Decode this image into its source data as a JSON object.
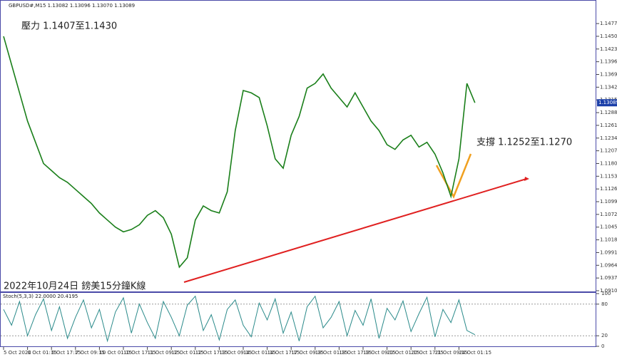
{
  "chart_data": {
    "type": "line",
    "title": "GBPUSD#,M15 1.13082 1.13096 1.13070 1.13089",
    "annotations": [
      "壓力 1.1407至1.1430",
      "支撐 1.1252至1.1270",
      "2022年10月24日 鎊美15分鐘K線"
    ],
    "current_price": 1.13089,
    "categories": [
      "5 Oct 2022",
      null,
      null,
      "6 Oct 01:15",
      null,
      null,
      "6 Oct 17:15",
      null,
      null,
      "7 Oct 09:15",
      null,
      null,
      "10 Oct 01:15",
      null,
      null,
      "10 Oct 17:15",
      null,
      null,
      "11 Oct 09:15",
      null,
      null,
      "12 Oct 01:15",
      null,
      null,
      "12 Oct 17:15",
      null,
      null,
      "13 Oct 09:15",
      null,
      null,
      "14 Oct 01:15",
      null,
      null,
      "14 Oct 17:15",
      null,
      null,
      "17 Oct 09:15",
      null,
      null,
      "18 Oct 01:15",
      null,
      null,
      "18 Oct 17:15",
      null,
      null,
      "19 Oct 09:15",
      null,
      null,
      "20 Oct 01:15",
      null,
      null,
      "20 Oct 17:15",
      null,
      null,
      "21 Oct 09:15",
      null,
      null,
      "24 Oct 01:15",
      null,
      null
    ],
    "series": [
      {
        "name": "GBPUSD#",
        "color": "#1a7f1a",
        "values": [
          1.145,
          1.139,
          1.133,
          1.127,
          1.1225,
          1.118,
          1.1165,
          1.115,
          1.114,
          1.1125,
          1.111,
          1.1095,
          1.1075,
          1.106,
          1.1045,
          1.1035,
          1.104,
          1.105,
          1.107,
          1.108,
          1.1065,
          1.103,
          1.096,
          1.098,
          1.106,
          1.109,
          1.108,
          1.1075,
          1.112,
          1.125,
          1.1335,
          1.133,
          1.132,
          1.126,
          1.119,
          1.117,
          1.124,
          1.128,
          1.134,
          1.135,
          1.137,
          1.134,
          1.132,
          1.13,
          1.133,
          1.13,
          1.127,
          1.125,
          1.122,
          1.121,
          1.123,
          1.124,
          1.1215,
          1.1225,
          1.12,
          1.116,
          1.111,
          1.119,
          1.135,
          1.1309
        ]
      }
    ],
    "ylim": [
      1.091,
      1.1524
    ],
    "yticks": [
      {
        "value": 1.1477,
        "label": "1.14770"
      },
      {
        "value": 1.145,
        "label": "1.14500"
      },
      {
        "value": 1.1423,
        "label": "1.14230"
      },
      {
        "value": 1.1396,
        "label": "1.13960"
      },
      {
        "value": 1.1369,
        "label": "1.13690"
      },
      {
        "value": 1.1342,
        "label": "1.13420"
      },
      {
        "value": 1.1315,
        "label": "1.13150"
      },
      {
        "value": 1.1288,
        "label": "1.12880"
      },
      {
        "value": 1.1261,
        "label": "1.12610"
      },
      {
        "value": 1.1234,
        "label": "1.12340"
      },
      {
        "value": 1.1207,
        "label": "1.12070"
      },
      {
        "value": 1.118,
        "label": "1.11800"
      },
      {
        "value": 1.1153,
        "label": "1.11530"
      },
      {
        "value": 1.1126,
        "label": "1.11260"
      },
      {
        "value": 1.1099,
        "label": "1.10990"
      },
      {
        "value": 1.1072,
        "label": "1.10720"
      },
      {
        "value": 1.1045,
        "label": "1.10450"
      },
      {
        "value": 1.1018,
        "label": "1.10180"
      },
      {
        "value": 1.0991,
        "label": "1.09910"
      },
      {
        "value": 1.0964,
        "label": "1.09640"
      },
      {
        "value": 1.0937,
        "label": "1.09370"
      },
      {
        "value": 1.091,
        "label": "1.09100"
      }
    ],
    "stoch": {
      "label": "Stoch(5,3,3) 22.0000 20.4195",
      "color": "#2a8a8a",
      "values": [
        70,
        40,
        85,
        20,
        60,
        90,
        30,
        75,
        15,
        55,
        88,
        35,
        70,
        10,
        65,
        92,
        25,
        80,
        45,
        15,
        85,
        55,
        20,
        78,
        95,
        30,
        60,
        12,
        70,
        88,
        40,
        18,
        82,
        50,
        90,
        25,
        65,
        10,
        75,
        95,
        35,
        55,
        85,
        20,
        68,
        40,
        90,
        15,
        72,
        50,
        86,
        28,
        62,
        93,
        18,
        70,
        45,
        88,
        30,
        22
      ],
      "ylim": [
        0,
        100
      ],
      "yticks": [
        0,
        20,
        80,
        100
      ]
    }
  }
}
